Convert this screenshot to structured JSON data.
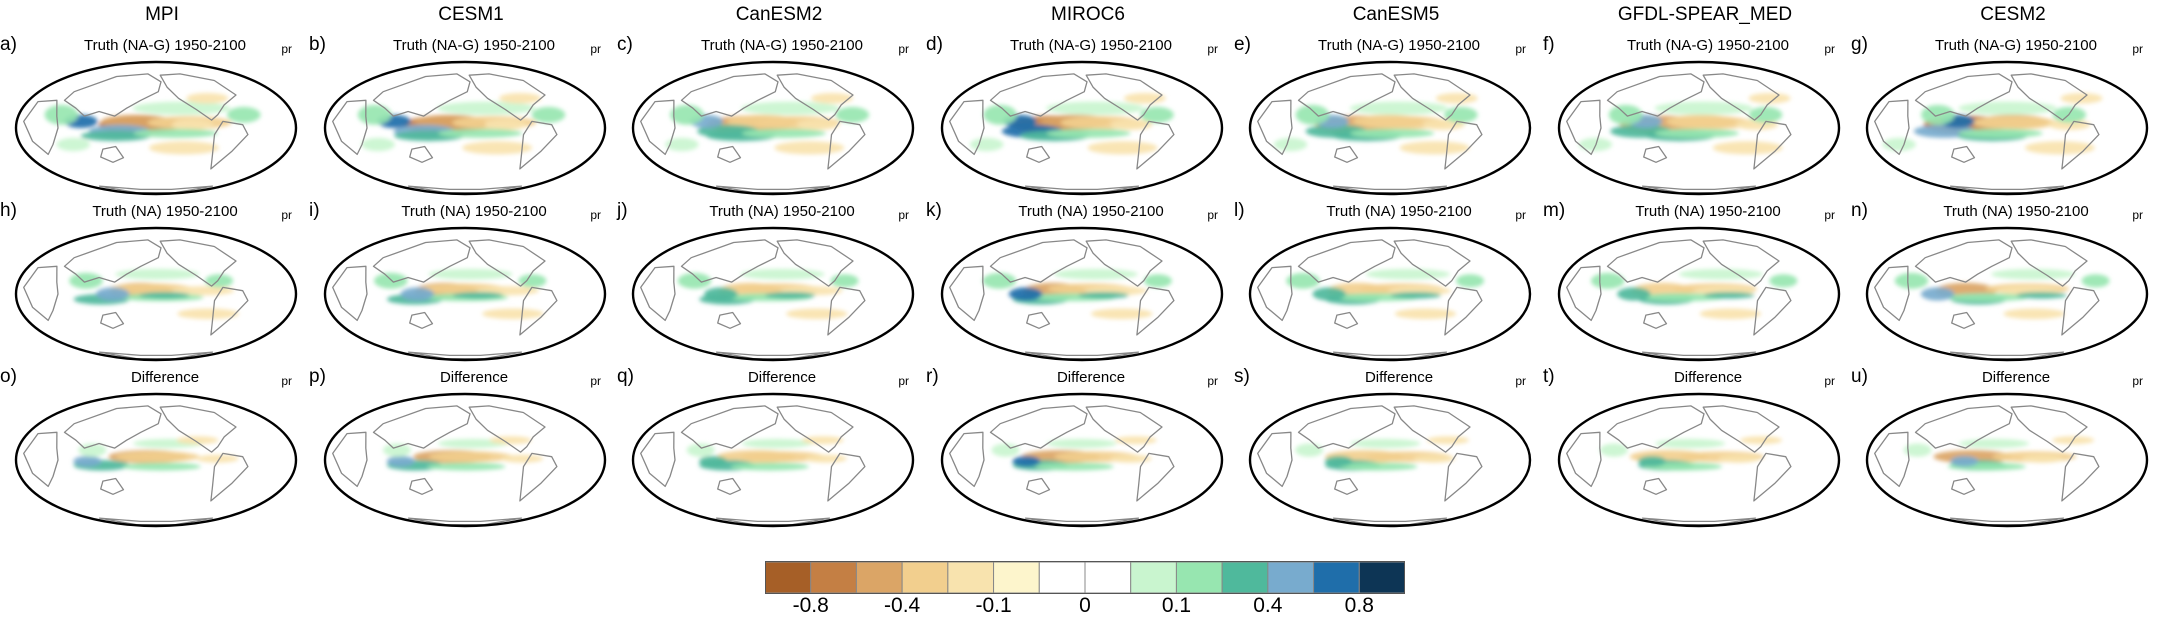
{
  "columns": [
    {
      "model": "MPI",
      "letters": [
        "a)",
        "h)",
        "o)"
      ]
    },
    {
      "model": "CESM1",
      "letters": [
        "b)",
        "i)",
        "p)"
      ]
    },
    {
      "model": "CanESM2",
      "letters": [
        "c)",
        "j)",
        "q)"
      ]
    },
    {
      "model": "MIROC6",
      "letters": [
        "d)",
        "k)",
        "r)"
      ]
    },
    {
      "model": "CanESM5",
      "letters": [
        "e)",
        "l)",
        "s)"
      ]
    },
    {
      "model": "GFDL-SPEAR_MED",
      "letters": [
        "f)",
        "m)",
        "t)"
      ]
    },
    {
      "model": "CESM2",
      "letters": [
        "g)",
        "n)",
        "u)"
      ]
    }
  ],
  "row_titles": [
    "Truth (NA-G) 1950-2100",
    "Truth (NA) 1950-2100",
    "Difference"
  ],
  "variable": "pr",
  "colorbar": {
    "colors": [
      "#a65f27",
      "#c47f44",
      "#dba566",
      "#f2cf8e",
      "#f8e3ae",
      "#fdf5cc",
      "#ffffff",
      "#ffffff",
      "#c9f5cf",
      "#97e6b0",
      "#4fb99c",
      "#78abce",
      "#1f6eaa",
      "#0d3555"
    ],
    "labels": [
      "-0.8",
      "-0.4",
      "-0.1",
      "0",
      "0.1",
      "0.4",
      "0.8"
    ]
  },
  "palette": {
    "land": "#888888",
    "border": "#000000"
  }
}
